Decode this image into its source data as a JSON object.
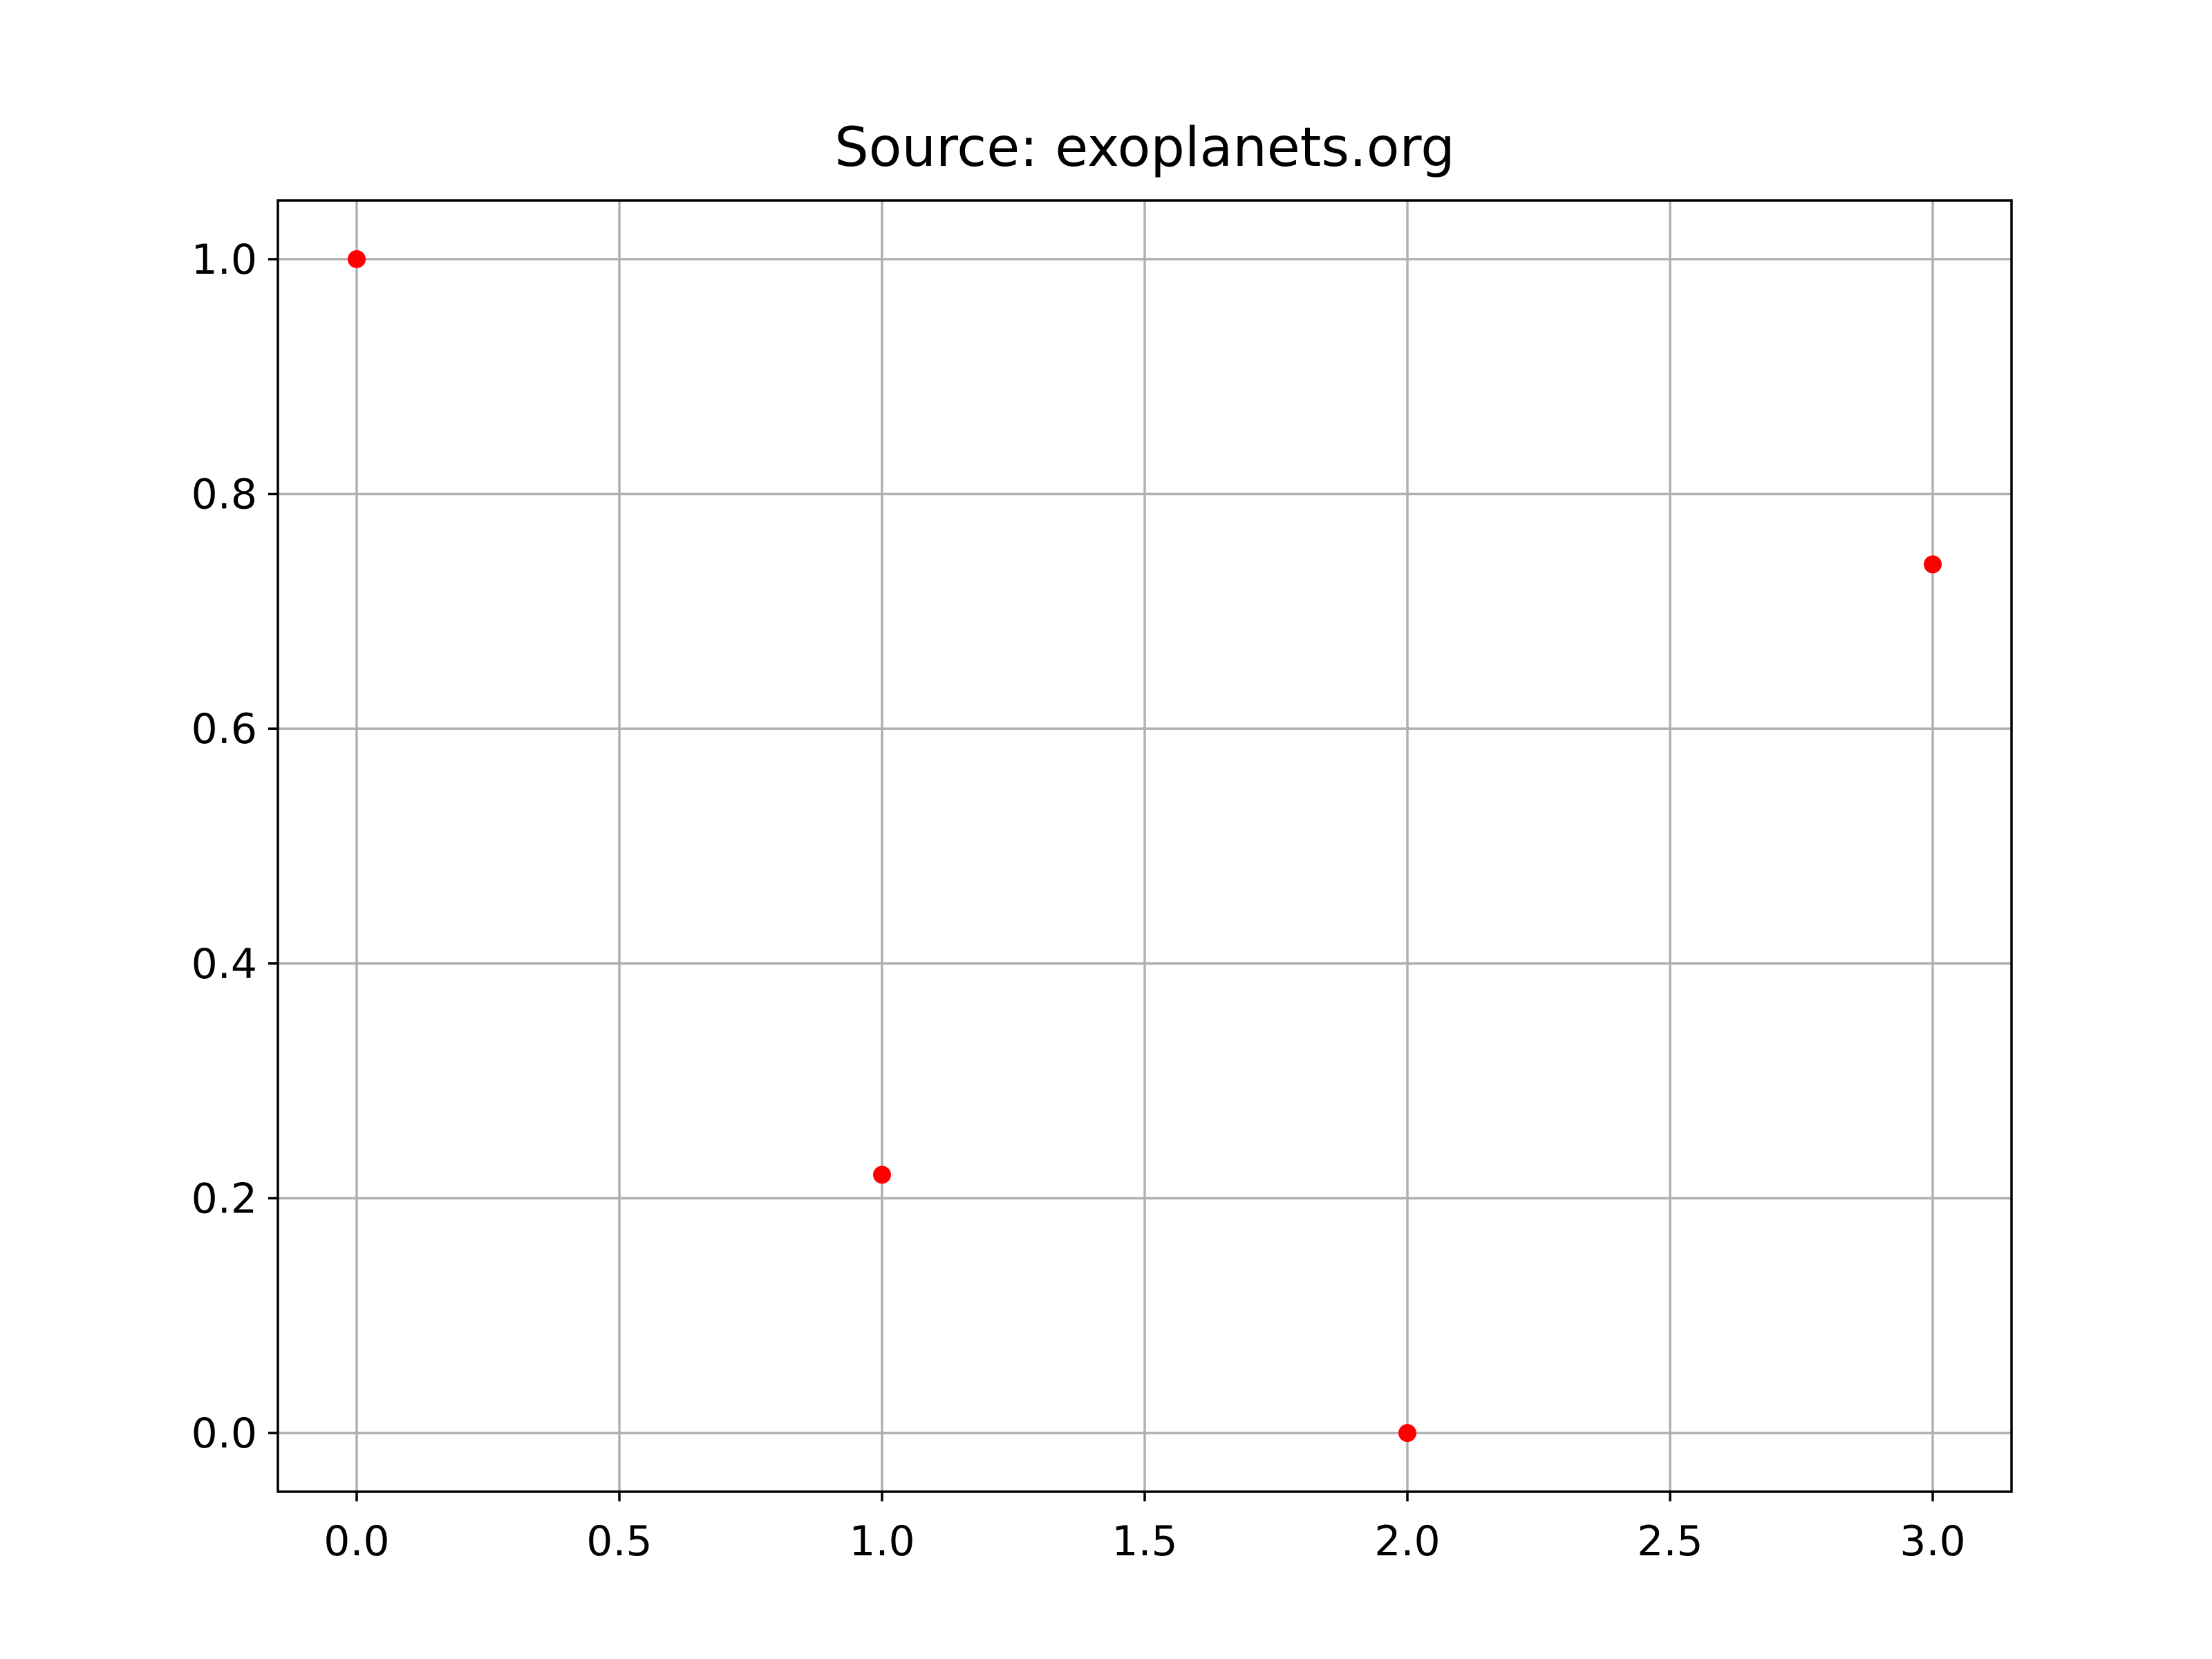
{
  "chart_data": {
    "type": "scatter",
    "title": "Source: exoplanets.org",
    "xlabel": "",
    "ylabel": "",
    "xlim": [
      -0.15,
      3.15
    ],
    "ylim": [
      -0.05,
      1.05
    ],
    "grid": true,
    "x_ticks": [
      0.0,
      0.5,
      1.0,
      1.5,
      2.0,
      2.5,
      3.0
    ],
    "x_tick_labels": [
      "0.0",
      "0.5",
      "1.0",
      "1.5",
      "2.0",
      "2.5",
      "3.0"
    ],
    "y_ticks": [
      0.0,
      0.2,
      0.4,
      0.6,
      0.8,
      1.0
    ],
    "y_tick_labels": [
      "0.0",
      "0.2",
      "0.4",
      "0.6",
      "0.8",
      "1.0"
    ],
    "series": [
      {
        "x": [
          0,
          1,
          2,
          3
        ],
        "y": [
          1.0,
          0.22,
          0.0,
          0.74
        ],
        "color": "#ff0000",
        "marker": "circle"
      }
    ]
  }
}
